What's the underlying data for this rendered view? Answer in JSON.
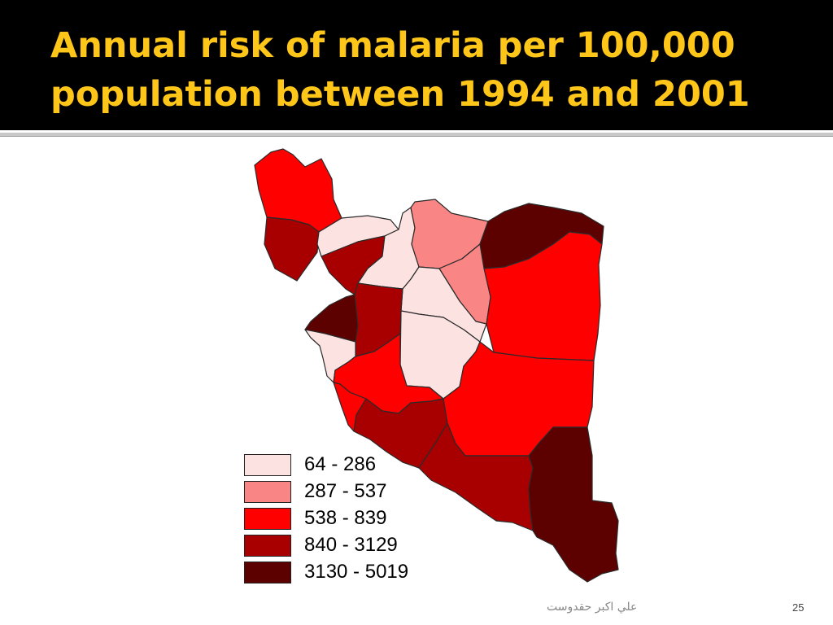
{
  "slide": {
    "title": "Annual risk of malaria per 100,000 population between 1994 and 2001",
    "author": "علي اكبر حقدوست",
    "page_number": "25"
  },
  "colors": {
    "title_bar": "#000000",
    "title_text": "#ffc61a",
    "region_border": "#2a2a2a"
  },
  "legend": [
    {
      "label": "64 - 286",
      "color": "#fde2e2"
    },
    {
      "label": "287 - 537",
      "color": "#fa8585"
    },
    {
      "label": "538 - 839",
      "color": "#ff0000"
    },
    {
      "label": "840 - 3129",
      "color": "#a80000"
    },
    {
      "label": "3130 - 5019",
      "color": "#5c0000"
    }
  ],
  "regions": [
    {
      "name": "province-northwest-top",
      "class": 2
    },
    {
      "name": "province-northwest-mid",
      "class": 3
    },
    {
      "name": "province-north-center-a",
      "class": 0
    },
    {
      "name": "province-north-center-b",
      "class": 3
    },
    {
      "name": "province-tehran-region",
      "class": 0
    },
    {
      "name": "province-north-east-a",
      "class": 1
    },
    {
      "name": "province-north-east-b",
      "class": 1
    },
    {
      "name": "province-far-northeast",
      "class": 4
    },
    {
      "name": "province-east",
      "class": 2
    },
    {
      "name": "province-center-a",
      "class": 0
    },
    {
      "name": "province-center-b",
      "class": 0
    },
    {
      "name": "province-west-small",
      "class": 4
    },
    {
      "name": "province-west-center",
      "class": 3
    },
    {
      "name": "province-southwest-light",
      "class": 0
    },
    {
      "name": "province-south-center",
      "class": 2
    },
    {
      "name": "province-southwest-coast",
      "class": 2
    },
    {
      "name": "province-south-a",
      "class": 3
    },
    {
      "name": "province-southeast-center",
      "class": 2
    },
    {
      "name": "province-south-coast",
      "class": 3
    },
    {
      "name": "province-southeast",
      "class": 4
    }
  ]
}
